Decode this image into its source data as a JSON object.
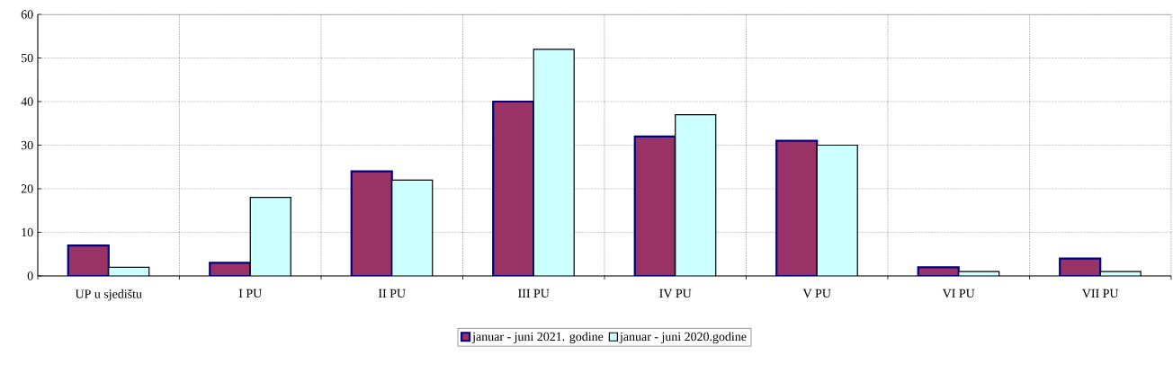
{
  "chart_data": {
    "type": "bar",
    "categories": [
      "UP u sjedištu",
      "I PU",
      "II PU",
      "III PU",
      "IV PU",
      "V PU",
      "VI PU",
      "VII PU"
    ],
    "series": [
      {
        "name": "januar - juni 2021. godine",
        "color": "#993366",
        "values": [
          7,
          3,
          24,
          40,
          32,
          31,
          2,
          4
        ]
      },
      {
        "name": "januar - juni 2020.godine",
        "color": "#ccffff",
        "values": [
          2,
          18,
          22,
          52,
          37,
          30,
          1,
          1
        ]
      }
    ],
    "ylim": [
      0,
      60
    ],
    "yticks": [
      0,
      10,
      20,
      30,
      40,
      50,
      60
    ],
    "grid": true,
    "legend": "bottom"
  }
}
